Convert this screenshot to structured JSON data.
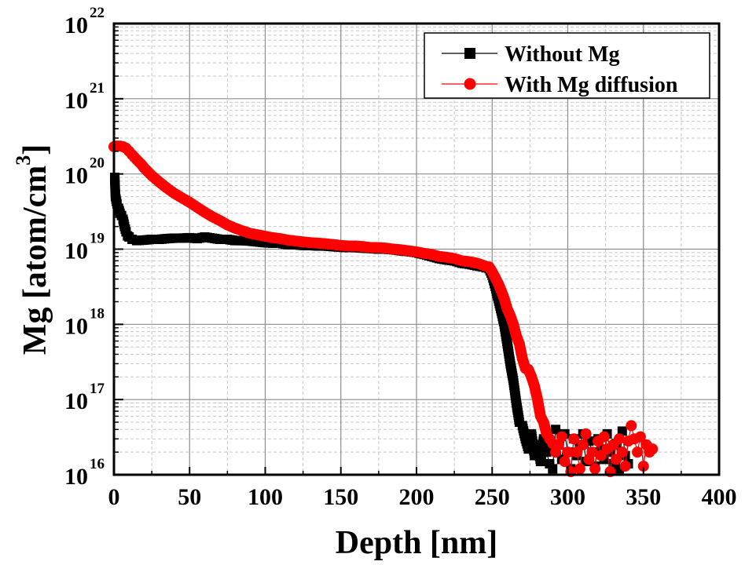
{
  "chart_data": {
    "type": "scatter",
    "title": "",
    "xlabel": "Depth [nm]",
    "ylabel_main": "Mg [atom/cm",
    "ylabel_sup": "3",
    "ylabel_close": "]",
    "yscale": "log",
    "xlim": [
      0,
      400
    ],
    "ylim": [
      1e+16,
      1e+22
    ],
    "x_ticks": [
      0,
      50,
      100,
      150,
      200,
      250,
      300,
      350,
      400
    ],
    "x_tick_labels": [
      "0",
      "50",
      "100",
      "150",
      "200",
      "250",
      "300",
      "350",
      "400"
    ],
    "y_ticks": [
      {
        "base": "10",
        "exp": "16",
        "value": 1e+16
      },
      {
        "base": "10",
        "exp": "17",
        "value": 1e+17
      },
      {
        "base": "10",
        "exp": "18",
        "value": 1e+18
      },
      {
        "base": "10",
        "exp": "19",
        "value": 1e+19
      },
      {
        "base": "10",
        "exp": "20",
        "value": 1e+20
      },
      {
        "base": "10",
        "exp": "21",
        "value": 1e+21
      },
      {
        "base": "10",
        "exp": "22",
        "value": 1e+22
      }
    ],
    "grid": true,
    "legend_position": "top-right",
    "series": [
      {
        "name": "Without Mg",
        "color": "#000000",
        "marker": "square",
        "x": [
          0.5,
          1,
          2,
          3,
          4,
          5,
          6,
          7,
          8,
          9,
          10,
          12,
          15,
          20,
          25,
          30,
          35,
          40,
          45,
          50,
          55,
          60,
          65,
          70,
          75,
          80,
          85,
          90,
          95,
          100,
          105,
          110,
          115,
          120,
          125,
          130,
          135,
          140,
          145,
          150,
          155,
          160,
          165,
          170,
          175,
          180,
          185,
          190,
          195,
          200,
          205,
          210,
          215,
          220,
          225,
          230,
          235,
          240,
          244,
          248,
          250,
          252,
          254,
          256,
          258,
          260,
          262,
          264,
          266,
          268,
          270,
          272,
          274,
          276,
          278,
          280,
          282,
          284,
          286,
          288,
          290,
          292,
          294,
          296,
          298,
          300,
          302,
          304,
          306,
          308,
          310,
          312,
          314,
          316,
          318,
          320,
          322,
          324,
          326,
          328,
          330,
          332,
          334,
          336,
          338,
          340
        ],
        "y": [
          9e+19,
          5e+19,
          4e+19,
          3.5e+19,
          3e+19,
          2.8e+19,
          2.5e+19,
          2e+19,
          1.7e+19,
          1.5e+19,
          1.45e+19,
          1.35e+19,
          1.3e+19,
          1.32e+19,
          1.35e+19,
          1.35e+19,
          1.38e+19,
          1.4e+19,
          1.4e+19,
          1.42e+19,
          1.38e+19,
          1.45e+19,
          1.4e+19,
          1.35e+19,
          1.35e+19,
          1.3e+19,
          1.3e+19,
          1.28e+19,
          1.25e+19,
          1.22e+19,
          1.2e+19,
          1.2e+19,
          1.15e+19,
          1.15e+19,
          1.12e+19,
          1.12e+19,
          1.1e+19,
          1.1e+19,
          1.08e+19,
          1.06e+19,
          1.05e+19,
          1.05e+19,
          1.03e+19,
          1.02e+19,
          1e+19,
          1e+19,
          9.8e+18,
          9.5e+18,
          9.3e+18,
          9e+18,
          8.5e+18,
          8e+18,
          7.5e+18,
          7.2e+18,
          7e+18,
          6.5e+18,
          6.3e+18,
          6e+18,
          5.8e+18,
          5.5e+18,
          4.5e+18,
          3.2e+18,
          2.2e+18,
          1.5e+18,
          1e+18,
          5.5e+17,
          3e+17,
          1.8e+17,
          9e+16,
          5e+16,
          4.5e+16,
          3e+16,
          2.2e+16,
          3.5e+16,
          1.8e+16,
          2.5e+16,
          1.5e+16,
          3e+16,
          2e+16,
          1.4e+16,
          1.2e+16,
          4e+16,
          2.5e+16,
          1.6e+16,
          3.5e+16,
          2e+16,
          1.2e+16,
          3e+16,
          1.8e+16,
          2.5e+16,
          3.5e+16,
          1.5e+16,
          2.8e+16,
          2e+16,
          1.3e+16,
          3e+16,
          2.2e+16,
          1.6e+16,
          3.5e+16,
          2e+16,
          1.4e+16,
          2.6e+16,
          1.2e+16,
          3.8e+16,
          1.8e+16,
          1.4e+16
        ]
      },
      {
        "name": "With Mg diffusion",
        "color": "#ff0000",
        "marker": "circle",
        "x": [
          0,
          2,
          4,
          6,
          8,
          10,
          12,
          15,
          18,
          20,
          25,
          30,
          35,
          40,
          45,
          50,
          55,
          60,
          65,
          70,
          75,
          80,
          85,
          90,
          95,
          100,
          105,
          110,
          115,
          120,
          125,
          130,
          135,
          140,
          145,
          150,
          155,
          160,
          165,
          170,
          175,
          180,
          185,
          190,
          195,
          200,
          205,
          210,
          215,
          220,
          225,
          230,
          235,
          240,
          245,
          248,
          250,
          252,
          254,
          256,
          258,
          260,
          262,
          264,
          266,
          268,
          270,
          272,
          274,
          276,
          278,
          280,
          282,
          284,
          286,
          288,
          290,
          292,
          294,
          296,
          298,
          300,
          302,
          304,
          306,
          308,
          310,
          312,
          314,
          316,
          318,
          320,
          322,
          324,
          326,
          328,
          330,
          332,
          334,
          336,
          338,
          340,
          342,
          344,
          346,
          348,
          350,
          352,
          354,
          356
        ],
        "y": [
          2.3e+20,
          2.35e+20,
          2.35e+20,
          2.3e+20,
          2.2e+20,
          2e+20,
          1.8e+20,
          1.55e+20,
          1.35e+20,
          1.2e+20,
          9.5e+19,
          7.8e+19,
          6.5e+19,
          5.5e+19,
          4.8e+19,
          4.2e+19,
          3.6e+19,
          3.1e+19,
          2.7e+19,
          2.4e+19,
          2.1e+19,
          1.9e+19,
          1.75e+19,
          1.62e+19,
          1.55e+19,
          1.48e+19,
          1.42e+19,
          1.38e+19,
          1.32e+19,
          1.28e+19,
          1.25e+19,
          1.22e+19,
          1.2e+19,
          1.18e+19,
          1.15e+19,
          1.12e+19,
          1.1e+19,
          1.1e+19,
          1.08e+19,
          1.05e+19,
          1.05e+19,
          1.03e+19,
          1e+19,
          9.8e+18,
          9.5e+18,
          9.2e+18,
          8.8e+18,
          8.5e+18,
          8e+18,
          7.8e+18,
          7.5e+18,
          7e+18,
          6.8e+18,
          6.5e+18,
          6e+18,
          5.8e+18,
          5e+18,
          4.2e+18,
          3.5e+18,
          2.8e+18,
          2.2e+18,
          1.6e+18,
          1.3e+18,
          1e+18,
          7e+17,
          5.5e+17,
          3.5e+17,
          2.6e+17,
          2.5e+17,
          2e+17,
          1.5e+17,
          1e+17,
          6e+16,
          5e+16,
          3.5e+16,
          3e+16,
          2.6e+16,
          2e+16,
          2.5e+16,
          3.2e+16,
          1.5e+16,
          2e+16,
          1.1e+16,
          3e+16,
          2e+16,
          1.2e+16,
          2.5e+16,
          3.5e+16,
          1.6e+16,
          2e+16,
          1.2e+16,
          2.8e+16,
          1.8e+16,
          3.2e+16,
          2.2e+16,
          1.1e+16,
          2.5e+16,
          1.6e+16,
          3e+16,
          2e+16,
          1.3e+16,
          2.8e+16,
          4.5e+16,
          3e+16,
          2e+16,
          3.2e+16,
          1.3e+16,
          2.5e+16,
          2e+16,
          2.2e+16
        ]
      }
    ]
  }
}
